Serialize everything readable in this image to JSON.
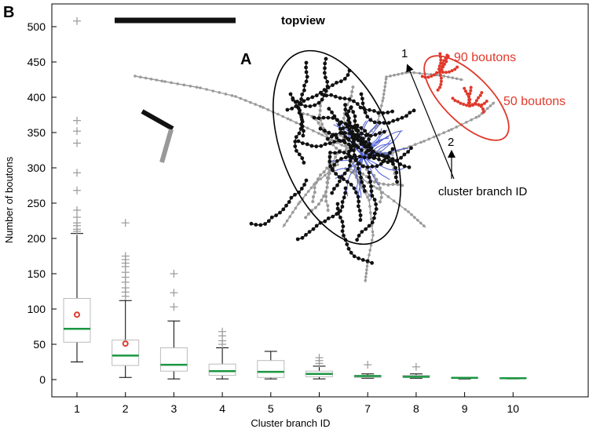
{
  "panel_b_label": "B",
  "panel_a_label": "A",
  "topview_label": "topview",
  "annotations": {
    "cluster1_label": "90 boutons",
    "cluster2_label": "50 boutons",
    "arrow1_label": "1",
    "arrow2_label": "2",
    "branch_note": "cluster branch ID"
  },
  "colors": {
    "box_edge": "#bbbbbb",
    "median": "#1a9641",
    "whisker": "#000000",
    "outlier": "#999999",
    "mean_marker": "#e0392b",
    "highlight": "#e0392b",
    "axon_black": "#111111",
    "axon_gray": "#9a9a9a",
    "dendrite": "#4a5bd4"
  },
  "chart_data": {
    "type": "box",
    "xlabel": "Cluster branch ID",
    "ylabel": "Number of boutons",
    "categories": [
      "1",
      "2",
      "3",
      "4",
      "5",
      "6",
      "7",
      "8",
      "9",
      "10"
    ],
    "ylim": [
      -20,
      530
    ],
    "yticks": [
      0,
      50,
      100,
      150,
      200,
      250,
      300,
      350,
      400,
      450,
      500
    ],
    "grid": false,
    "boxes": [
      {
        "x": "1",
        "whislo": 25,
        "q1": 53,
        "med": 72,
        "q3": 115,
        "whishi": 207,
        "mean": 92,
        "fliers": [
          210,
          213,
          218,
          222,
          230,
          240,
          268,
          293,
          335,
          352,
          367,
          508
        ]
      },
      {
        "x": "2",
        "whislo": 3,
        "q1": 20,
        "med": 34,
        "q3": 56,
        "whishi": 112,
        "mean": 51,
        "fliers": [
          118,
          124,
          130,
          138,
          145,
          152,
          160,
          165,
          170,
          175,
          222
        ]
      },
      {
        "x": "3",
        "whislo": 1,
        "q1": 12,
        "med": 21,
        "q3": 45,
        "whishi": 83,
        "fliers": [
          103,
          123,
          150
        ]
      },
      {
        "x": "4",
        "whislo": 1,
        "q1": 6,
        "med": 12,
        "q3": 22,
        "whishi": 45,
        "fliers": [
          50,
          55,
          62,
          68
        ]
      },
      {
        "x": "5",
        "whislo": 1,
        "q1": 3,
        "med": 11,
        "q3": 27,
        "whishi": 40,
        "fliers": []
      },
      {
        "x": "6",
        "whislo": 1,
        "q1": 4,
        "med": 8,
        "q3": 12,
        "whishi": 19,
        "fliers": [
          23,
          27,
          31
        ]
      },
      {
        "x": "7",
        "whislo": 2,
        "q1": 3,
        "med": 5,
        "q3": 6,
        "whishi": 8,
        "fliers": [
          21
        ]
      },
      {
        "x": "8",
        "whislo": 2,
        "q1": 3,
        "med": 4,
        "q3": 6,
        "whishi": 8,
        "fliers": [
          18
        ]
      },
      {
        "x": "9",
        "whislo": 1,
        "q1": 2,
        "med": 2.5,
        "q3": 3,
        "whishi": 3,
        "fliers": []
      },
      {
        "x": "10",
        "whislo": 1,
        "q1": 1.5,
        "med": 2,
        "q3": 2.5,
        "whishi": 2.5,
        "fliers": []
      }
    ]
  }
}
